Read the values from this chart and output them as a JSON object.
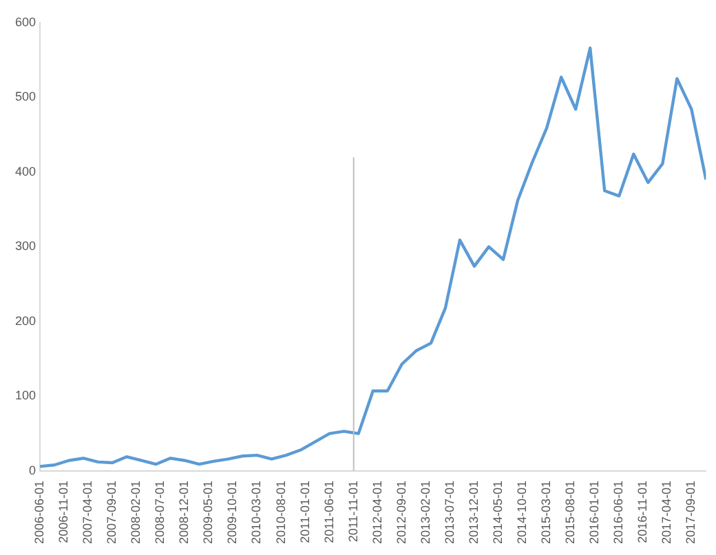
{
  "chart_data": {
    "type": "line",
    "x": [
      "2006-06",
      "2006-09",
      "2006-12",
      "2007-03",
      "2007-06",
      "2007-09",
      "2007-12",
      "2008-03",
      "2008-06",
      "2008-09",
      "2008-12",
      "2009-03",
      "2009-06",
      "2009-09",
      "2009-12",
      "2010-03",
      "2010-06",
      "2010-09",
      "2010-12",
      "2011-03",
      "2011-06",
      "2011-09",
      "2011-12",
      "2012-03",
      "2012-06",
      "2012-09",
      "2012-12",
      "2013-03",
      "2013-06",
      "2013-09",
      "2013-12",
      "2014-03",
      "2014-06",
      "2014-09",
      "2014-12",
      "2015-03",
      "2015-06",
      "2015-09",
      "2015-12",
      "2016-03",
      "2016-06",
      "2016-09",
      "2016-12",
      "2017-03",
      "2017-06",
      "2017-09",
      "2017-12"
    ],
    "series": [
      {
        "color": "#5b9bd5",
        "values": [
          6,
          8,
          14,
          17,
          12,
          11,
          19,
          14,
          9,
          17,
          14,
          9,
          13,
          16,
          20,
          21,
          16,
          21,
          28,
          39,
          50,
          53,
          50,
          107,
          107,
          143,
          161,
          171,
          218,
          309,
          274,
          300,
          283,
          362,
          413,
          459,
          527,
          484,
          566,
          375,
          368,
          424,
          386,
          411,
          525,
          484,
          390
        ]
      }
    ],
    "xlim": [
      "2006-06",
      "2017-12"
    ],
    "xticks": [
      {
        "value": "2006-06",
        "label": "2006-06-01"
      },
      {
        "value": "2006-11",
        "label": "2006-11-01"
      },
      {
        "value": "2007-04",
        "label": "2007-04-01"
      },
      {
        "value": "2007-09",
        "label": "2007-09-01"
      },
      {
        "value": "2008-02",
        "label": "2008-02-01"
      },
      {
        "value": "2008-07",
        "label": "2008-07-01"
      },
      {
        "value": "2008-12",
        "label": "2008-12-01"
      },
      {
        "value": "2009-05",
        "label": "2009-05-01"
      },
      {
        "value": "2009-10",
        "label": "2009-10-01"
      },
      {
        "value": "2010-03",
        "label": "2010-03-01"
      },
      {
        "value": "2010-08",
        "label": "2010-08-01"
      },
      {
        "value": "2011-01",
        "label": "2011-01-01"
      },
      {
        "value": "2011-06",
        "label": "2011-06-01"
      },
      {
        "value": "2011-11",
        "label": "2011-11-01"
      },
      {
        "value": "2012-04",
        "label": "2012-04-01"
      },
      {
        "value": "2012-09",
        "label": "2012-09-01"
      },
      {
        "value": "2013-02",
        "label": "2013-02-01"
      },
      {
        "value": "2013-07",
        "label": "2013-07-01"
      },
      {
        "value": "2013-12",
        "label": "2013-12-01"
      },
      {
        "value": "2014-05",
        "label": "2014-05-01"
      },
      {
        "value": "2014-10",
        "label": "2014-10-01"
      },
      {
        "value": "2015-03",
        "label": "2015-03-01"
      },
      {
        "value": "2015-08",
        "label": "2015-08-01"
      },
      {
        "value": "2016-01",
        "label": "2016-01-01"
      },
      {
        "value": "2016-06",
        "label": "2016-06-01"
      },
      {
        "value": "2016-11",
        "label": "2016-11-01"
      },
      {
        "value": "2017-04",
        "label": "2017-04-01"
      },
      {
        "value": "2017-09",
        "label": "2017-09-01"
      }
    ],
    "ylim": [
      0,
      600
    ],
    "yticks": [
      0,
      100,
      200,
      300,
      400,
      500,
      600
    ],
    "ref_lines": [
      {
        "axis": "x",
        "value": "2011-11",
        "color": "#bfbfbf"
      }
    ],
    "grid": false,
    "legend": false,
    "marker": "none",
    "line_style": "solid"
  }
}
